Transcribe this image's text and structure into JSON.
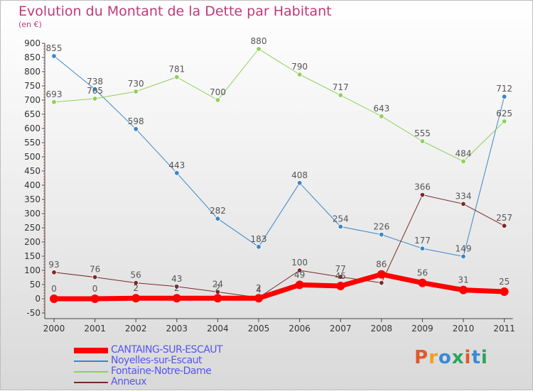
{
  "title": "Evolution du Montant de la Dette par Habitant",
  "unit": "(en €)",
  "logo": {
    "text": "Proxiti",
    "colors": [
      "#e05a2a",
      "#f0a020",
      "#3a8ad6",
      "#2aa55a",
      "#e05a2a",
      "#3a8ad6",
      "#2aa55a"
    ]
  },
  "chart_data": {
    "type": "line",
    "title": "Evolution du Montant de la Dette par Habitant",
    "ylabel": "(en €)",
    "xlabel": "",
    "x": [
      "2000",
      "2001",
      "2002",
      "2003",
      "2004",
      "2005",
      "2006",
      "2007",
      "2008",
      "2009",
      "2010",
      "2011"
    ],
    "ylim": [
      -50,
      900
    ],
    "yticks": [
      -50,
      0,
      50,
      100,
      150,
      200,
      250,
      300,
      350,
      400,
      450,
      500,
      550,
      600,
      650,
      700,
      750,
      800,
      850,
      900
    ],
    "grid": false,
    "legend_position": "bottom-left",
    "series": [
      {
        "name": "Noyelles-sur-Escaut",
        "color": "#3a86c8",
        "width": 1,
        "values": [
          855,
          738,
          598,
          443,
          282,
          183,
          408,
          254,
          226,
          177,
          149,
          712
        ],
        "labels": [
          "855",
          "738",
          "598",
          "443",
          "282",
          "183",
          "408",
          "254",
          "226",
          "177",
          "149",
          "712"
        ]
      },
      {
        "name": "Fontaine-Notre-Dame",
        "color": "#8fd05a",
        "width": 1,
        "values": [
          693,
          705,
          730,
          781,
          700,
          880,
          790,
          717,
          643,
          555,
          484,
          625
        ],
        "labels": [
          "693",
          "705",
          "730",
          "781",
          "700",
          "880",
          "790",
          "717",
          "643",
          "555",
          "484",
          "625"
        ]
      },
      {
        "name": "Anneux",
        "color": "#7a2a2a",
        "width": 1,
        "values": [
          93,
          76,
          56,
          43,
          24,
          4,
          100,
          77,
          56,
          366,
          334,
          257
        ],
        "labels": [
          "93",
          "76",
          "56",
          "43",
          "24",
          "4",
          "100",
          "77",
          "",
          "366",
          "334",
          "257"
        ]
      },
      {
        "name": "CANTAING-SUR-ESCAUT",
        "color": "#ff0000",
        "width": 7,
        "values": [
          0,
          0,
          2,
          2,
          2,
          2,
          49,
          45,
          86,
          56,
          31,
          25
        ],
        "labels": [
          "0",
          "0",
          "2",
          "2",
          "2",
          "2",
          "49",
          "45",
          "86",
          "56",
          "31",
          "25"
        ]
      }
    ],
    "legend": [
      "CANTAING-SUR-ESCAUT",
      "Noyelles-sur-Escaut",
      "Fontaine-Notre-Dame",
      "Anneux"
    ]
  }
}
